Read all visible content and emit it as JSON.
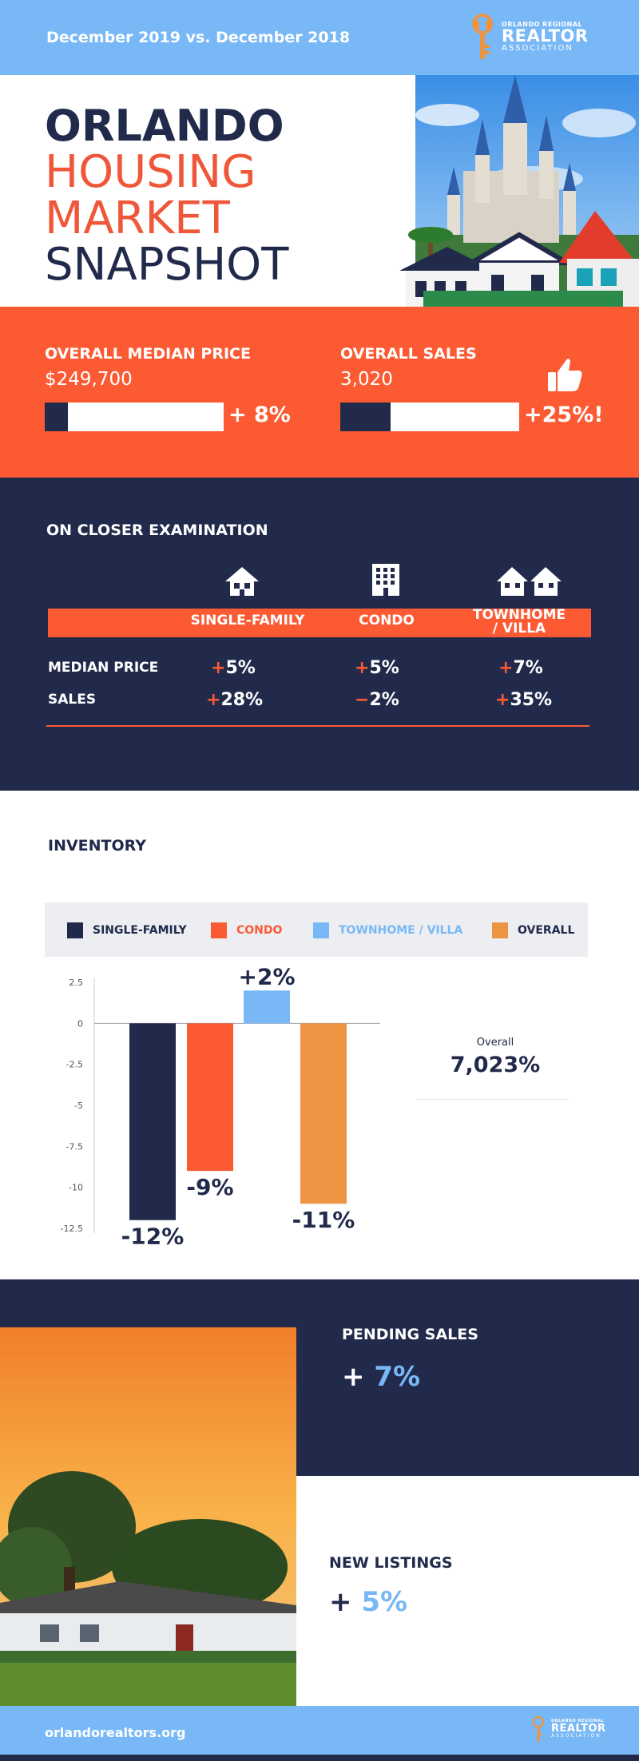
{
  "header": {
    "date_range": "December 2019 vs. December 2018",
    "logo": {
      "line1": "ORLANDO REGIONAL",
      "line2": "REALTOR",
      "line3": "ASSOCIATION"
    }
  },
  "title": {
    "line1": "ORLANDO",
    "line2": "HOUSING",
    "line3": "MARKET",
    "line4": "SNAPSHOT"
  },
  "overall": {
    "median_price": {
      "label": "OVERALL MEDIAN PRICE",
      "value": "$249,700",
      "change": "+ 8%",
      "bar_fill_fraction": 0.13
    },
    "sales": {
      "label": "OVERALL SALES",
      "value": "3,020",
      "change": "+25%!",
      "bar_fill_fraction": 0.28
    },
    "thumb_icon": "thumbs-up-icon"
  },
  "closer": {
    "heading": "ON CLOSER EXAMINATION",
    "types": [
      {
        "label": "SINGLE-FAMILY",
        "icon": "house-icon"
      },
      {
        "label": "CONDO",
        "icon": "building-icon"
      },
      {
        "label": "TOWNHOME / VILLA",
        "label_line1": "TOWNHOME",
        "label_line2": "/ VILLA",
        "icon": "townhomes-icon"
      }
    ],
    "rows": [
      {
        "label": "MEDIAN PRICE",
        "values": [
          {
            "sign": "+",
            "num": "5%"
          },
          {
            "sign": "+",
            "num": "5%"
          },
          {
            "sign": "+",
            "num": "7%"
          }
        ]
      },
      {
        "label": "SALES",
        "values": [
          {
            "sign": "+",
            "num": "28%"
          },
          {
            "sign": "−",
            "num": "2%"
          },
          {
            "sign": "+",
            "num": "35%"
          }
        ]
      }
    ]
  },
  "inventory": {
    "heading": "INVENTORY",
    "legend": [
      {
        "label": "SINGLE-FAMILY",
        "color": "#222a4c"
      },
      {
        "label": "CONDO",
        "color": "#fc5a33"
      },
      {
        "label": "TOWNHOME / VILLA",
        "color": "#79b8f6"
      },
      {
        "label": "OVERALL",
        "color": "#ed9442"
      }
    ],
    "overall_label": "Overall",
    "overall_value": "7,023%"
  },
  "chart_data": {
    "type": "bar",
    "categories": [
      "SINGLE-FAMILY",
      "CONDO",
      "TOWNHOME / VILLA",
      "OVERALL"
    ],
    "values": [
      -12,
      -9,
      2,
      -11
    ],
    "data_labels": [
      "-12%",
      "-9%",
      "+2%",
      "-11%"
    ],
    "colors": [
      "#222a4c",
      "#fc5a33",
      "#79b8f6",
      "#ed9442"
    ],
    "y_ticks": [
      "2.5",
      "0",
      "-2.5",
      "-5",
      "-7.5",
      "-10",
      "-12.5"
    ],
    "ylim": [
      -12.5,
      2.5
    ],
    "grid": false
  },
  "pending": {
    "label": "PENDING SALES",
    "sign": "+",
    "value": "7%"
  },
  "listings": {
    "label": "NEW LISTINGS",
    "sign": "+",
    "value": "5%"
  },
  "footer": {
    "website": "orlandorealtors.org",
    "logo": {
      "line1": "ORLANDO REGIONAL",
      "line2": "REALTOR",
      "line3": "ASSOCIATION"
    }
  }
}
